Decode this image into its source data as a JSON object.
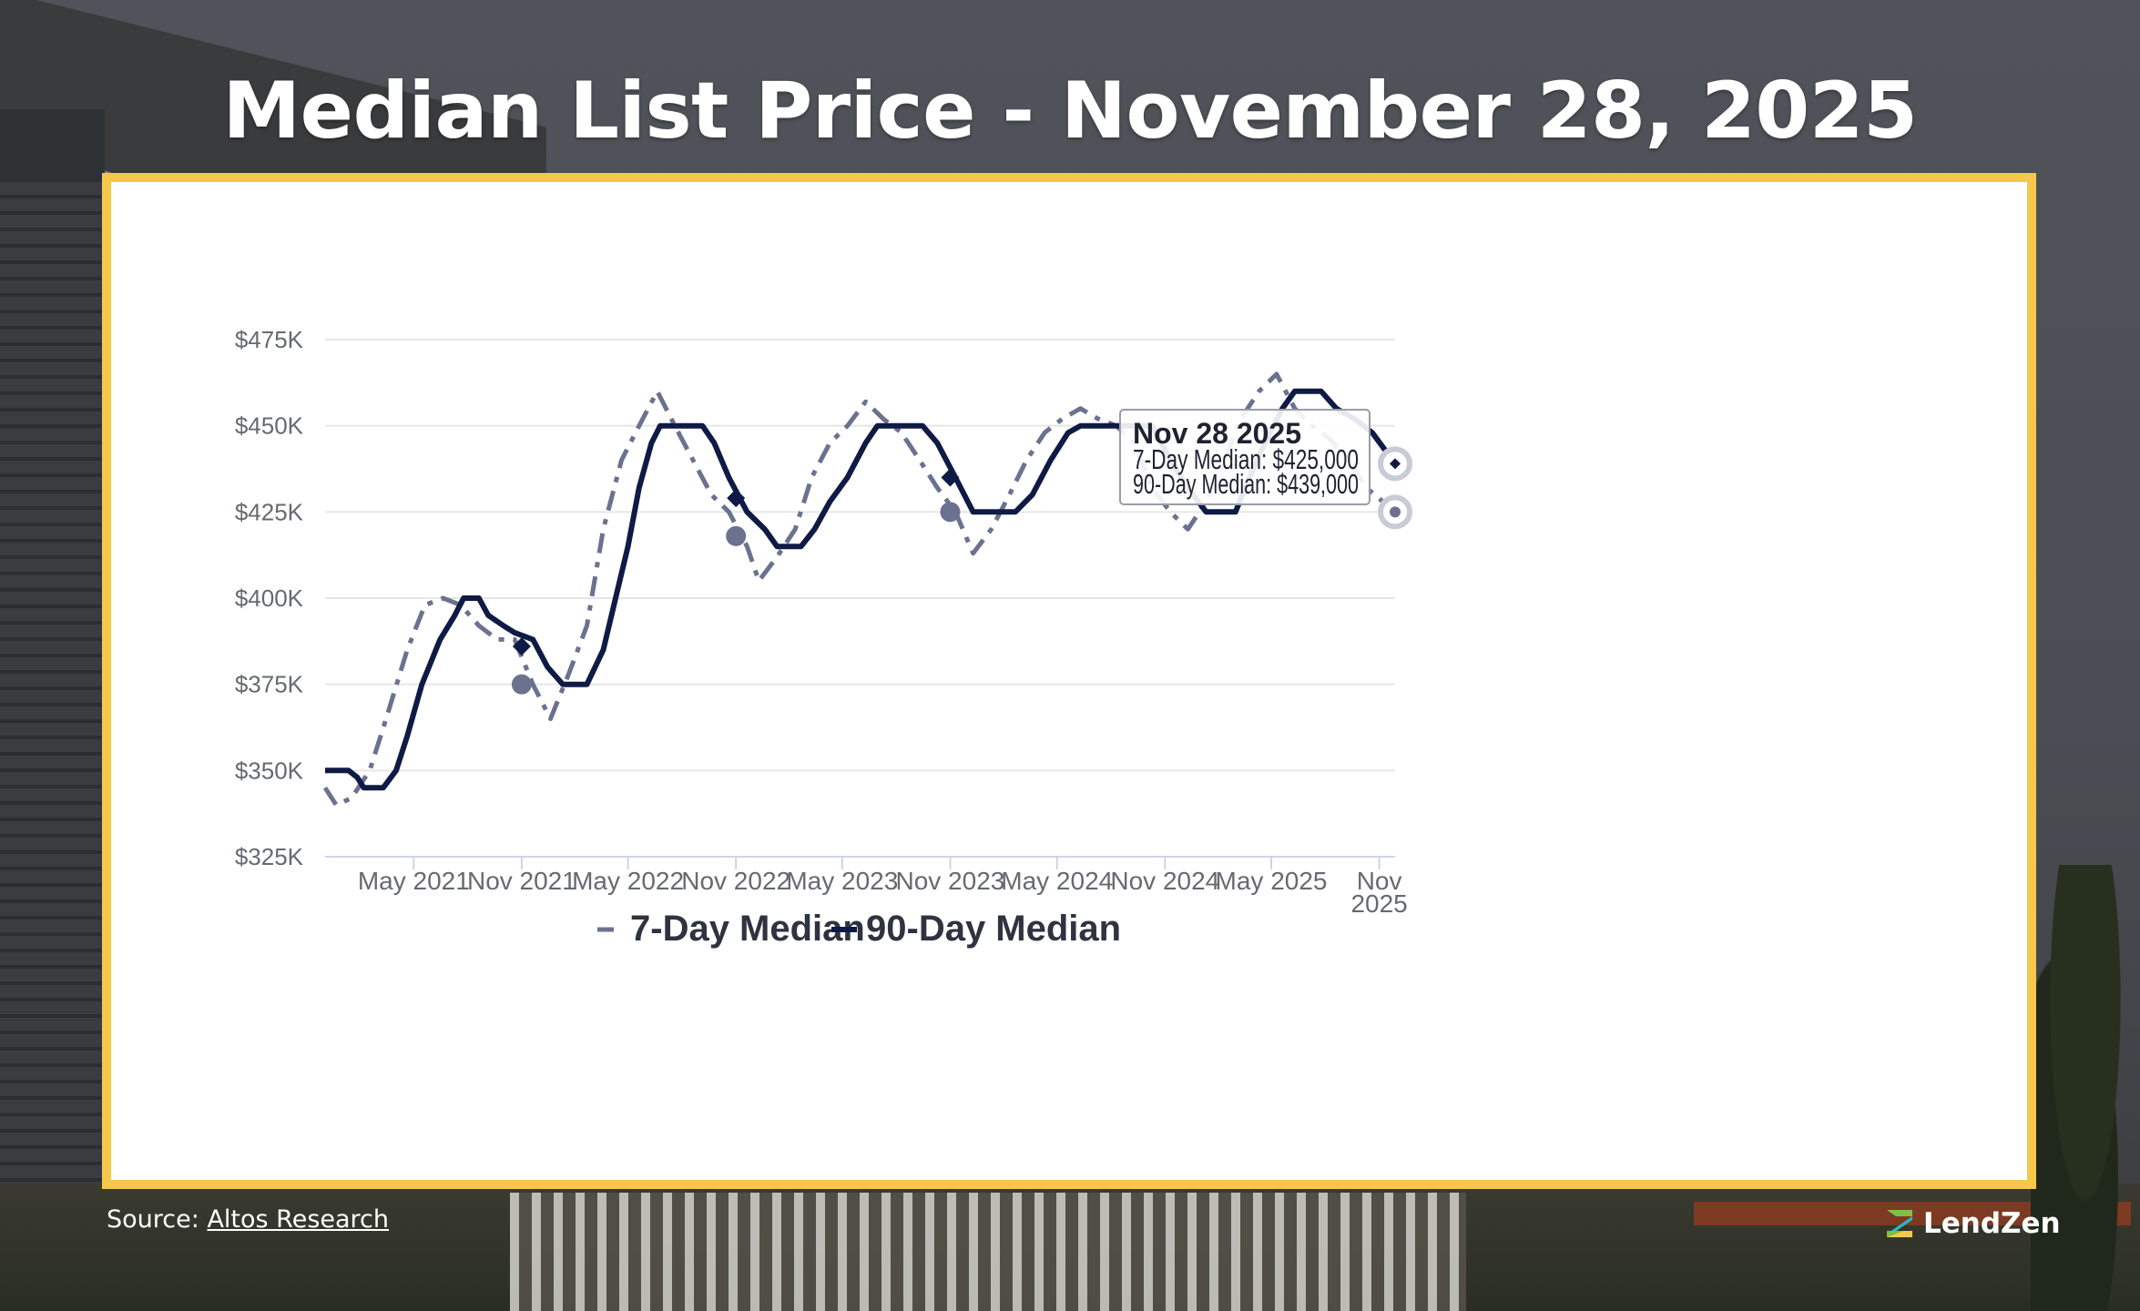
{
  "title": "Median List Price - November 28, 2025",
  "source": {
    "label": "Source:",
    "link_text": "Altos Research"
  },
  "brand": {
    "name": "LendZen"
  },
  "colors": {
    "frame": "#f5c84c",
    "series_7day": "#6b7290",
    "series_90day": "#0f1a45",
    "text": "#666a70"
  },
  "chart_data": {
    "type": "line",
    "title": "",
    "xlabel": "",
    "ylabel": "",
    "ylim": [
      325000,
      475000
    ],
    "yticks": [
      325000,
      350000,
      375000,
      400000,
      425000,
      450000,
      475000
    ],
    "ytick_labels": [
      "$325K",
      "$350K",
      "$375K",
      "$400K",
      "$425K",
      "$450K",
      "$475K"
    ],
    "xlim": [
      "2020-12-01",
      "2025-11-28"
    ],
    "xticks": [
      "2021-05-01",
      "2021-11-01",
      "2022-05-01",
      "2022-11-01",
      "2023-05-01",
      "2023-11-01",
      "2024-05-01",
      "2024-11-01",
      "2025-05-01",
      "2025-11-01"
    ],
    "xtick_labels": [
      "May 2021",
      "Nov 2021",
      "May 2022",
      "Nov 2022",
      "May 2023",
      "Nov 2023",
      "May 2024",
      "Nov 2024",
      "May 2025",
      "Nov\n2025"
    ],
    "grid": true,
    "legend": "bottom",
    "series": [
      {
        "name": "7-Day Median",
        "style": "dashed",
        "points": [
          [
            "2020-12-01",
            345000
          ],
          [
            "2020-12-20",
            340000
          ],
          [
            "2021-01-15",
            342000
          ],
          [
            "2021-02-15",
            350000
          ],
          [
            "2021-03-15",
            365000
          ],
          [
            "2021-04-20",
            385000
          ],
          [
            "2021-05-20",
            398000
          ],
          [
            "2021-06-20",
            400000
          ],
          [
            "2021-07-20",
            398000
          ],
          [
            "2021-08-20",
            392000
          ],
          [
            "2021-09-20",
            388000
          ],
          [
            "2021-10-20",
            388000
          ],
          [
            "2021-11-20",
            375000
          ],
          [
            "2021-12-20",
            365000
          ],
          [
            "2022-01-20",
            378000
          ],
          [
            "2022-02-20",
            392000
          ],
          [
            "2022-03-20",
            420000
          ],
          [
            "2022-04-20",
            440000
          ],
          [
            "2022-05-20",
            450000
          ],
          [
            "2022-06-20",
            460000
          ],
          [
            "2022-07-20",
            450000
          ],
          [
            "2022-08-20",
            440000
          ],
          [
            "2022-09-20",
            430000
          ],
          [
            "2022-10-20",
            425000
          ],
          [
            "2022-11-20",
            415000
          ],
          [
            "2022-12-10",
            405000
          ],
          [
            "2023-01-10",
            412000
          ],
          [
            "2023-02-10",
            420000
          ],
          [
            "2023-03-10",
            435000
          ],
          [
            "2023-04-10",
            445000
          ],
          [
            "2023-05-10",
            450000
          ],
          [
            "2023-06-10",
            457000
          ],
          [
            "2023-07-10",
            452000
          ],
          [
            "2023-08-10",
            448000
          ],
          [
            "2023-09-10",
            440000
          ],
          [
            "2023-10-10",
            432000
          ],
          [
            "2023-11-10",
            425000
          ],
          [
            "2023-12-10",
            413000
          ],
          [
            "2024-01-10",
            420000
          ],
          [
            "2024-02-10",
            430000
          ],
          [
            "2024-03-10",
            440000
          ],
          [
            "2024-04-10",
            448000
          ],
          [
            "2024-05-10",
            452000
          ],
          [
            "2024-06-10",
            455000
          ],
          [
            "2024-07-10",
            452000
          ],
          [
            "2024-08-10",
            450000
          ],
          [
            "2024-09-10",
            445000
          ],
          [
            "2024-10-10",
            432000
          ],
          [
            "2024-11-10",
            425000
          ],
          [
            "2024-12-10",
            420000
          ],
          [
            "2025-01-10",
            428000
          ],
          [
            "2025-02-10",
            440000
          ],
          [
            "2025-03-10",
            452000
          ],
          [
            "2025-04-10",
            460000
          ],
          [
            "2025-05-10",
            465000
          ],
          [
            "2025-06-10",
            455000
          ],
          [
            "2025-07-10",
            450000
          ],
          [
            "2025-08-10",
            446000
          ],
          [
            "2025-09-10",
            440000
          ],
          [
            "2025-10-10",
            432000
          ],
          [
            "2025-11-28",
            425000
          ]
        ],
        "markers": [
          [
            "2021-11-01",
            375000
          ],
          [
            "2022-11-01",
            418000
          ],
          [
            "2023-11-01",
            425000
          ],
          [
            "2025-11-28",
            425000
          ]
        ]
      },
      {
        "name": "90-Day Median",
        "style": "solid",
        "points": [
          [
            "2020-12-01",
            350000
          ],
          [
            "2021-01-10",
            350000
          ],
          [
            "2021-01-25",
            348000
          ],
          [
            "2021-02-05",
            345000
          ],
          [
            "2021-03-10",
            345000
          ],
          [
            "2021-04-01",
            350000
          ],
          [
            "2021-04-20",
            360000
          ],
          [
            "2021-05-15",
            375000
          ],
          [
            "2021-06-15",
            388000
          ],
          [
            "2021-07-10",
            395000
          ],
          [
            "2021-07-25",
            400000
          ],
          [
            "2021-08-20",
            400000
          ],
          [
            "2021-09-05",
            395000
          ],
          [
            "2021-10-01",
            392000
          ],
          [
            "2021-10-20",
            390000
          ],
          [
            "2021-11-20",
            388000
          ],
          [
            "2021-12-15",
            380000
          ],
          [
            "2022-01-10",
            375000
          ],
          [
            "2022-02-20",
            375000
          ],
          [
            "2022-03-20",
            385000
          ],
          [
            "2022-04-10",
            400000
          ],
          [
            "2022-05-01",
            415000
          ],
          [
            "2022-05-20",
            432000
          ],
          [
            "2022-06-10",
            445000
          ],
          [
            "2022-06-25",
            450000
          ],
          [
            "2022-08-10",
            450000
          ],
          [
            "2022-09-05",
            450000
          ],
          [
            "2022-09-25",
            445000
          ],
          [
            "2022-10-20",
            435000
          ],
          [
            "2022-11-20",
            425000
          ],
          [
            "2022-12-20",
            420000
          ],
          [
            "2023-01-10",
            415000
          ],
          [
            "2023-02-20",
            415000
          ],
          [
            "2023-03-15",
            420000
          ],
          [
            "2023-04-10",
            428000
          ],
          [
            "2023-05-10",
            435000
          ],
          [
            "2023-06-10",
            445000
          ],
          [
            "2023-06-30",
            450000
          ],
          [
            "2023-09-15",
            450000
          ],
          [
            "2023-10-10",
            445000
          ],
          [
            "2023-11-10",
            435000
          ],
          [
            "2023-12-10",
            425000
          ],
          [
            "2024-01-20",
            425000
          ],
          [
            "2024-02-20",
            425000
          ],
          [
            "2024-03-20",
            430000
          ],
          [
            "2024-04-20",
            440000
          ],
          [
            "2024-05-20",
            448000
          ],
          [
            "2024-06-10",
            450000
          ],
          [
            "2024-10-10",
            450000
          ],
          [
            "2024-11-10",
            440000
          ],
          [
            "2024-12-10",
            432000
          ],
          [
            "2025-01-10",
            425000
          ],
          [
            "2025-03-01",
            425000
          ],
          [
            "2025-03-25",
            435000
          ],
          [
            "2025-04-20",
            445000
          ],
          [
            "2025-05-20",
            455000
          ],
          [
            "2025-06-10",
            460000
          ],
          [
            "2025-07-25",
            460000
          ],
          [
            "2025-08-20",
            455000
          ],
          [
            "2025-09-20",
            452000
          ],
          [
            "2025-10-20",
            448000
          ],
          [
            "2025-11-28",
            439000
          ]
        ],
        "markers": [
          [
            "2021-11-01",
            386000
          ],
          [
            "2022-11-01",
            429000
          ],
          [
            "2023-11-01",
            435000
          ],
          [
            "2025-11-28",
            439000
          ]
        ]
      }
    ],
    "tooltip": {
      "date": "Nov 28 2025",
      "lines": [
        "7-Day Median: $425,000",
        "90-Day Median: $439,000"
      ]
    }
  }
}
